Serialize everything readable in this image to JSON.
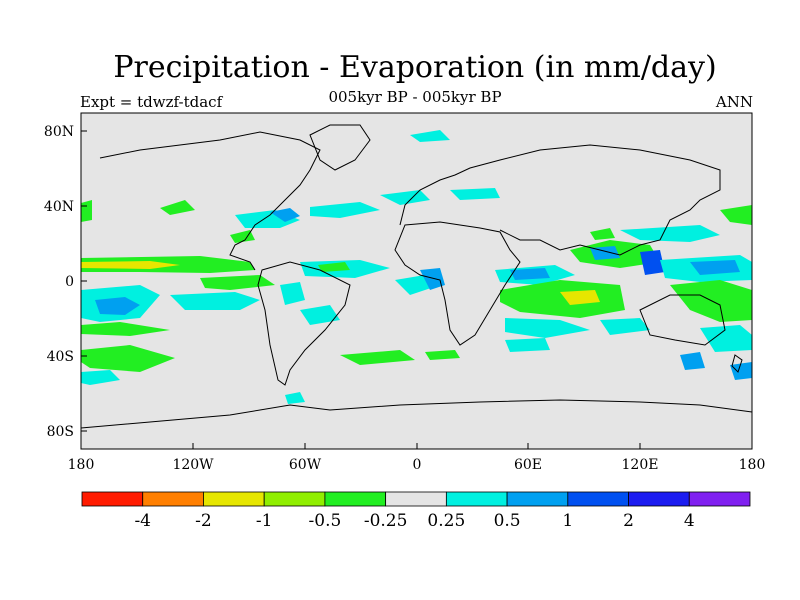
{
  "title": "Precipitation - Evaporation (in mm/day)",
  "subtitle": "005kyr BP - 005kyr BP",
  "left_label": "Expt = tdwzf-tdacf",
  "right_label": "ANN",
  "y_ticks": [
    "80N",
    "40N",
    "0",
    "40S",
    "80S"
  ],
  "x_ticks": [
    "180",
    "120W",
    "60W",
    "0",
    "60E",
    "120E",
    "180"
  ],
  "background_color": "#e5e5e5",
  "colorbar": {
    "colors": [
      "#ff1b00",
      "#ff7f00",
      "#e6e600",
      "#90ee00",
      "#22ee22",
      "#e5e5e5",
      "#00f0e0",
      "#00a0f0",
      "#0050f0",
      "#1c1cf0",
      "#8020f0"
    ],
    "labels": [
      "-4",
      "-2",
      "-1",
      "-0.5",
      "-0.25",
      "0.25",
      "0.5",
      "1",
      "2",
      "4"
    ]
  }
}
